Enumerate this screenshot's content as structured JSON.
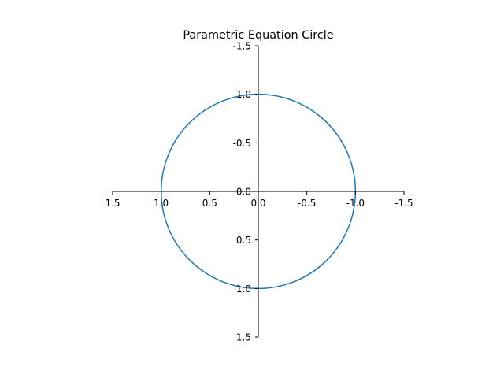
{
  "chart_data": {
    "type": "line",
    "title": "Parametric Equation Circle",
    "xlabel": "",
    "ylabel": "",
    "xlim": [
      1.5,
      -1.5
    ],
    "ylim": [
      1.5,
      -1.5
    ],
    "x_inverted": true,
    "y_inverted": true,
    "spines": "centered",
    "grid": false,
    "xticks": [
      1.5,
      1.0,
      0.5,
      0.0,
      -0.5,
      -1.0,
      -1.5
    ],
    "xtick_labels": [
      "1.5",
      "1.0",
      "0.5",
      "0.0",
      "-0.5",
      "-1.0",
      "-1.5"
    ],
    "yticks": [
      -1.5,
      -1.0,
      -0.5,
      0.0,
      0.5,
      1.0,
      1.5
    ],
    "ytick_labels": [
      "-1.5",
      "-1.0",
      "-0.5",
      "0.0",
      "0.5",
      "1.0",
      "1.5"
    ],
    "series": [
      {
        "color": "#1f77b4",
        "curve": "circle",
        "center": [
          0,
          0
        ],
        "radius": 1.0
      }
    ]
  }
}
